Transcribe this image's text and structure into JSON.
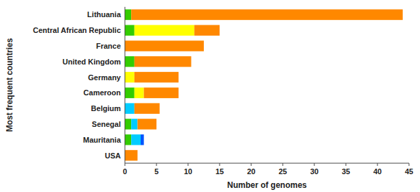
{
  "chart_data": {
    "type": "bar",
    "orientation": "horizontal",
    "stacked": true,
    "grid": false,
    "categories": [
      "Lithuania",
      "Central African Republic",
      "France",
      "United Kingdom",
      "Germany",
      "Cameroon",
      "Belgium",
      "Senegal",
      "Mauritania",
      "USA"
    ],
    "series": [
      {
        "color": "#33cc00",
        "values": [
          1.0,
          1.5,
          0.0,
          1.5,
          0.0,
          1.5,
          0.0,
          1.0,
          1.0,
          0.0
        ]
      },
      {
        "color": "#ffff00",
        "values": [
          0.0,
          9.5,
          0.0,
          0.0,
          1.5,
          1.5,
          0.0,
          0.0,
          0.0,
          0.0
        ]
      },
      {
        "color": "#00ccff",
        "values": [
          0.0,
          0.0,
          0.0,
          0.0,
          0.0,
          0.0,
          1.5,
          1.0,
          1.5,
          0.0
        ]
      },
      {
        "color": "#0055ff",
        "values": [
          0.0,
          0.0,
          0.0,
          0.0,
          0.0,
          0.0,
          0.0,
          0.0,
          0.5,
          0.0
        ]
      },
      {
        "color": "#ff8800",
        "values": [
          43.0,
          4.0,
          12.5,
          9.0,
          7.0,
          5.5,
          4.0,
          3.0,
          0.0,
          2.0
        ]
      }
    ],
    "xlim": [
      0,
      45
    ],
    "xticks": [
      0,
      5,
      10,
      15,
      20,
      25,
      30,
      35,
      40,
      45
    ],
    "xlabel": "Number of genomes",
    "ylabel": "Most frequent countries"
  }
}
